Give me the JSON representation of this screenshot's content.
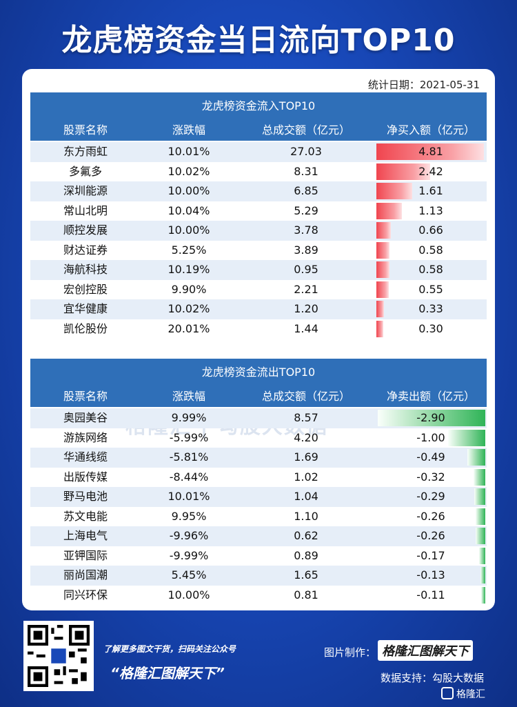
{
  "title": "龙虎榜资金当日流向TOP10",
  "date_label": "统计日期：2021-05-31",
  "chart_data": [
    {
      "type": "table",
      "title": "龙虎榜资金流入TOP10",
      "columns": [
        "股票名称",
        "涨跌幅",
        "总成交额（亿元）",
        "净买入额（亿元）"
      ],
      "rows": [
        {
          "name": "东方雨虹",
          "change": "10.01%",
          "turnover": "27.03",
          "net": "4.81",
          "value": 4.81
        },
        {
          "name": "多氟多",
          "change": "10.02%",
          "turnover": "8.31",
          "net": "2.42",
          "value": 2.42
        },
        {
          "name": "深圳能源",
          "change": "10.00%",
          "turnover": "6.85",
          "net": "1.61",
          "value": 1.61
        },
        {
          "name": "常山北明",
          "change": "10.04%",
          "turnover": "5.29",
          "net": "1.13",
          "value": 1.13
        },
        {
          "name": "顺控发展",
          "change": "10.00%",
          "turnover": "3.78",
          "net": "0.66",
          "value": 0.66
        },
        {
          "name": "财达证券",
          "change": "5.25%",
          "turnover": "3.89",
          "net": "0.58",
          "value": 0.58
        },
        {
          "name": "海航科技",
          "change": "10.19%",
          "turnover": "0.95",
          "net": "0.58",
          "value": 0.58
        },
        {
          "name": "宏创控股",
          "change": "9.90%",
          "turnover": "2.21",
          "net": "0.55",
          "value": 0.55
        },
        {
          "name": "宜华健康",
          "change": "10.02%",
          "turnover": "1.20",
          "net": "0.33",
          "value": 0.33
        },
        {
          "name": "凯伦股份",
          "change": "20.01%",
          "turnover": "1.44",
          "net": "0.30",
          "value": 0.3
        }
      ],
      "bar_color": "#f0454f"
    },
    {
      "type": "table",
      "title": "龙虎榜资金流出TOP10",
      "columns": [
        "股票名称",
        "涨跌幅",
        "总成交额（亿元）",
        "净卖出额（亿元）"
      ],
      "rows": [
        {
          "name": "奥园美谷",
          "change": "9.99%",
          "turnover": "8.57",
          "net": "-2.90",
          "value": -2.9
        },
        {
          "name": "游族网络",
          "change": "-5.99%",
          "turnover": "4.20",
          "net": "-1.00",
          "value": -1.0
        },
        {
          "name": "华通线缆",
          "change": "-5.81%",
          "turnover": "1.69",
          "net": "-0.49",
          "value": -0.49
        },
        {
          "name": "出版传媒",
          "change": "-8.44%",
          "turnover": "1.02",
          "net": "-0.32",
          "value": -0.32
        },
        {
          "name": "野马电池",
          "change": "10.01%",
          "turnover": "1.04",
          "net": "-0.29",
          "value": -0.29
        },
        {
          "name": "苏文电能",
          "change": "9.95%",
          "turnover": "1.10",
          "net": "-0.26",
          "value": -0.26
        },
        {
          "name": "上海电气",
          "change": "-9.96%",
          "turnover": "0.62",
          "net": "-0.26",
          "value": -0.26
        },
        {
          "name": "亚钾国际",
          "change": "-9.99%",
          "turnover": "0.89",
          "net": "-0.17",
          "value": -0.17
        },
        {
          "name": "丽尚国潮",
          "change": "5.45%",
          "turnover": "1.65",
          "net": "-0.13",
          "value": -0.13
        },
        {
          "name": "同兴环保",
          "change": "10.00%",
          "turnover": "0.81",
          "net": "-0.11",
          "value": -0.11
        }
      ],
      "bar_color": "#2fb457"
    }
  ],
  "watermark": "格隆汇 | 勾股大数据",
  "footer": {
    "slogan_small": "了解更多图文干货，扫码关注公众号",
    "slogan_big": "“格隆汇图解天下”",
    "maker_label": "图片制作：",
    "maker_value": "格隆汇图解天下",
    "support": "数据支持：勾股大数据",
    "brand": "格隆汇"
  }
}
